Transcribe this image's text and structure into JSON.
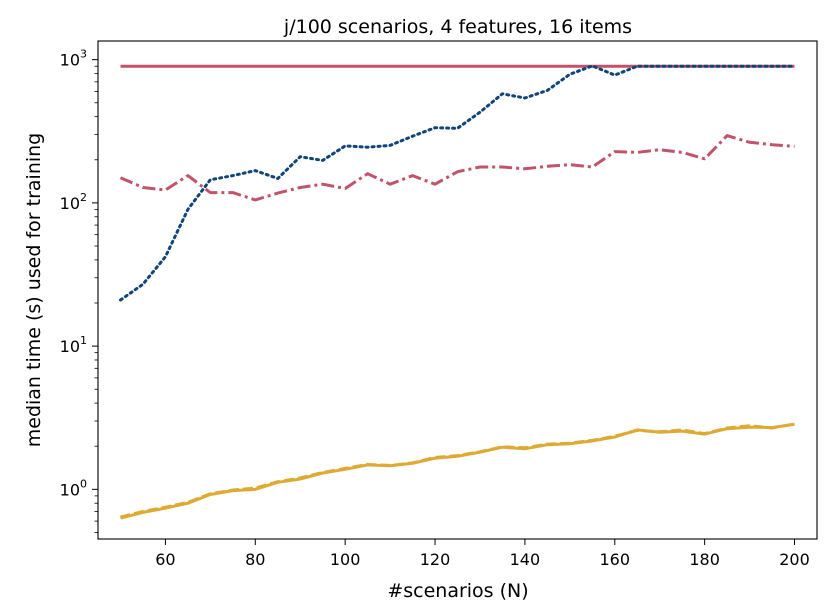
{
  "chart_data": {
    "type": "line",
    "title": "j/100 scenarios, 4 features, 16 items",
    "xlabel": "#scenarios (N)",
    "ylabel": "median time (s) used for training",
    "yscale": "log",
    "xlim": [
      45,
      205
    ],
    "ylim": [
      0.45,
      1350
    ],
    "grid": false,
    "legend": "none",
    "x_ticks": [
      60,
      80,
      100,
      120,
      140,
      160,
      180,
      200
    ],
    "y_ticks": [
      {
        "value": 1,
        "base": "10",
        "exp": "0"
      },
      {
        "value": 10,
        "base": "10",
        "exp": "1"
      },
      {
        "value": 100,
        "base": "10",
        "exp": "2"
      },
      {
        "value": 1000,
        "base": "10",
        "exp": "3"
      }
    ],
    "series": [
      {
        "color": "#c1536a",
        "dash": "solid",
        "x": [
          50,
          60,
          70,
          80,
          90,
          100,
          110,
          120,
          130,
          140,
          150,
          160,
          170,
          180,
          190,
          200
        ],
        "y": [
          900,
          900,
          900,
          900,
          900,
          900,
          900,
          900,
          900,
          900,
          900,
          900,
          900,
          900,
          900,
          900
        ]
      },
      {
        "color": "#c1536a",
        "dash": "dashdot",
        "x": [
          50,
          55,
          60,
          65,
          70,
          75,
          80,
          85,
          90,
          95,
          100,
          105,
          110,
          115,
          120,
          125,
          130,
          135,
          140,
          145,
          150,
          155,
          160,
          165,
          170,
          175,
          180,
          185,
          190,
          195,
          200
        ],
        "y": [
          150,
          128,
          123,
          155,
          118,
          118,
          105,
          117,
          128,
          135,
          126,
          160,
          135,
          155,
          135,
          165,
          178,
          178,
          173,
          180,
          185,
          178,
          228,
          225,
          235,
          225,
          203,
          295,
          265,
          255,
          248
        ]
      },
      {
        "color": "#114477",
        "dash": "dotted",
        "x": [
          50,
          55,
          60,
          65,
          70,
          75,
          80,
          85,
          90,
          95,
          100,
          105,
          110,
          115,
          120,
          125,
          130,
          135,
          140,
          145,
          150,
          155,
          160,
          165,
          170,
          175,
          180,
          185,
          190,
          195,
          200
        ],
        "y": [
          21,
          27,
          42,
          90,
          145,
          155,
          168,
          148,
          210,
          198,
          250,
          245,
          252,
          292,
          335,
          332,
          430,
          578,
          540,
          610,
          790,
          905,
          780,
          900,
          900,
          900,
          900,
          900,
          900,
          900,
          900
        ]
      },
      {
        "color": "#ddaa33",
        "dash": "solid",
        "x": [
          50,
          55,
          60,
          65,
          70,
          75,
          80,
          85,
          90,
          95,
          100,
          105,
          110,
          115,
          120,
          125,
          130,
          135,
          140,
          145,
          150,
          155,
          160,
          165,
          170,
          175,
          180,
          185,
          190,
          195,
          200
        ],
        "y": [
          0.63,
          0.69,
          0.74,
          0.8,
          0.92,
          0.98,
          1.0,
          1.12,
          1.18,
          1.3,
          1.38,
          1.48,
          1.46,
          1.52,
          1.65,
          1.7,
          1.82,
          1.97,
          1.92,
          2.05,
          2.08,
          2.18,
          2.32,
          2.6,
          2.5,
          2.55,
          2.43,
          2.65,
          2.72,
          2.7,
          2.85
        ]
      },
      {
        "color": "#ddaa33",
        "dash": "dashed",
        "x": [
          50,
          55,
          60,
          65,
          70,
          75,
          80,
          85,
          90,
          95,
          100,
          105,
          110,
          115,
          120,
          125,
          130,
          135,
          140,
          145,
          150,
          155,
          160,
          165,
          170,
          175,
          180,
          185,
          190,
          195,
          200
        ],
        "y": [
          0.64,
          0.7,
          0.75,
          0.81,
          0.93,
          0.99,
          1.02,
          1.13,
          1.2,
          1.31,
          1.4,
          1.49,
          1.47,
          1.53,
          1.67,
          1.72,
          1.83,
          1.98,
          1.95,
          2.07,
          2.1,
          2.2,
          2.35,
          2.58,
          2.52,
          2.6,
          2.45,
          2.68,
          2.78,
          2.68,
          2.86
        ]
      }
    ]
  }
}
